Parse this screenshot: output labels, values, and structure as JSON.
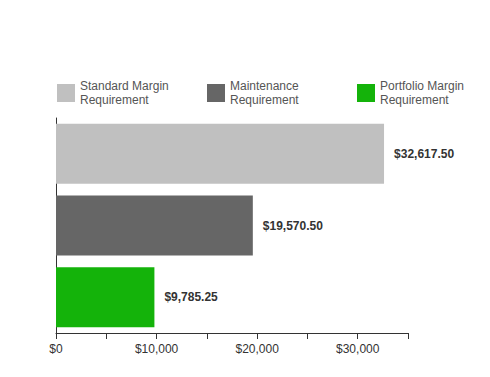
{
  "chart_data": {
    "type": "bar",
    "orientation": "horizontal",
    "categories": [
      "Standard Margin Requirement",
      "Maintenance Requirement",
      "Portfolio Margin Requirement"
    ],
    "values": [
      32617.5,
      19570.5,
      9785.25
    ],
    "value_labels": [
      "$32,617.50",
      "$19,570.50",
      "$9,785.25"
    ],
    "colors": [
      "#c0c0c0",
      "#666666",
      "#14b30a"
    ],
    "xlim": [
      0,
      35000
    ],
    "xticks": [
      {
        "value": 0,
        "label": "$0"
      },
      {
        "value": 10000,
        "label": "$10,000"
      },
      {
        "value": 20000,
        "label": "$20,000"
      },
      {
        "value": 30000,
        "label": "$30,000"
      }
    ],
    "legend": "top",
    "data_labels": true,
    "tick_labels": "x",
    "grid": false
  }
}
